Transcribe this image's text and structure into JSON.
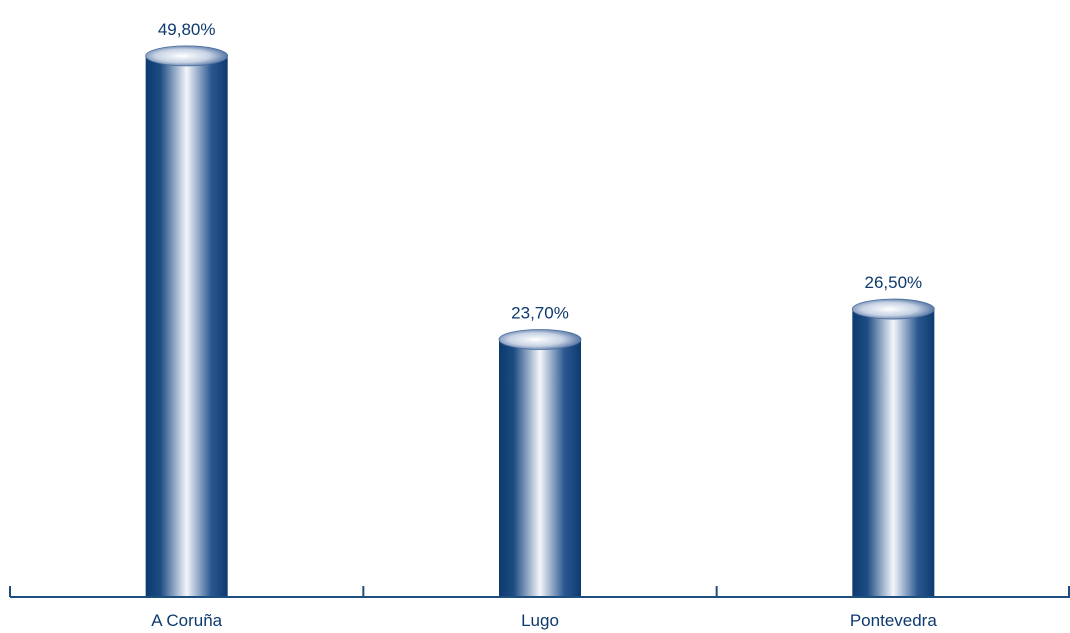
{
  "chart_data": {
    "type": "bar",
    "categories": [
      "A Coruña",
      "Lugo",
      "Pontevedra"
    ],
    "values": [
      49.8,
      23.7,
      26.5
    ],
    "value_labels": [
      "49,80%",
      "23,70%",
      "26,50%"
    ],
    "title": "",
    "xlabel": "",
    "ylabel": "",
    "ylim": [
      0,
      52
    ],
    "grid": false,
    "legend": "none",
    "bar_style": "cylinder",
    "colors": {
      "bar_dark": "#0d3a6e",
      "bar_light": "#ffffff",
      "axis": "#1f4f80",
      "text": "#0d3a6e"
    }
  }
}
